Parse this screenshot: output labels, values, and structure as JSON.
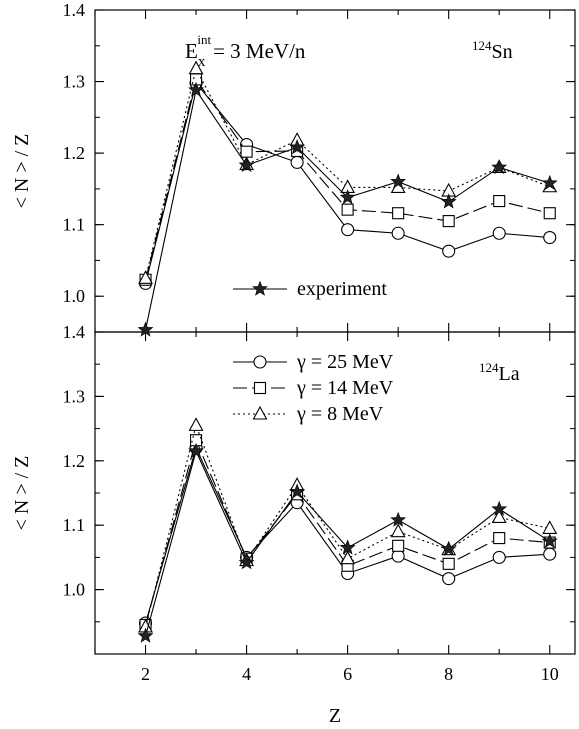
{
  "chart_data": [
    {
      "type": "line",
      "panel": "top",
      "annotation_energy": "3 MeV/n",
      "nucleus": {
        "mass": "124",
        "symbol": "Sn"
      },
      "ylabel": "< N > / Z",
      "xlim": [
        1,
        10.5
      ],
      "ylim": [
        0.95,
        1.4
      ],
      "yticks": [
        "1.0",
        "1.1",
        "1.2",
        "1.3",
        "1.4"
      ],
      "x": [
        2,
        3,
        4,
        5,
        6,
        7,
        8,
        9,
        10
      ],
      "series": [
        {
          "name": "γ = 25 MeV",
          "marker": "circle",
          "dash": "solid",
          "values": [
            1.018,
            1.298,
            1.212,
            1.187,
            1.093,
            1.088,
            1.063,
            1.088,
            1.082
          ]
        },
        {
          "name": "γ = 14 MeV",
          "marker": "square",
          "dash": "dashed",
          "values": [
            1.023,
            1.303,
            1.202,
            1.203,
            1.121,
            1.116,
            1.105,
            1.133,
            1.116
          ]
        },
        {
          "name": "γ = 8 MeV",
          "marker": "triangle",
          "dash": "dotted",
          "values": [
            1.025,
            1.318,
            1.184,
            1.218,
            1.152,
            1.152,
            1.147,
            1.18,
            1.153
          ]
        },
        {
          "name": "experiment",
          "marker": "star",
          "dash": "solid",
          "values": [
            0.953,
            1.288,
            1.183,
            1.208,
            1.138,
            1.16,
            1.132,
            1.18,
            1.158
          ]
        }
      ],
      "legend": [
        "experiment"
      ]
    },
    {
      "type": "line",
      "panel": "bottom",
      "nucleus": {
        "mass": "124",
        "symbol": "La"
      },
      "ylabel": "< N > / Z",
      "xlabel": "Z",
      "xlim": [
        1,
        10.5
      ],
      "ylim": [
        0.9,
        1.4
      ],
      "yticks": [
        "1.0",
        "1.1",
        "1.2",
        "1.3",
        "1.4"
      ],
      "xticks": [
        "2",
        "4",
        "6",
        "8",
        "10"
      ],
      "x": [
        2,
        3,
        4,
        5,
        6,
        7,
        8,
        9,
        10
      ],
      "series": [
        {
          "name": "γ = 25 MeV",
          "marker": "circle",
          "dash": "solid",
          "values": [
            0.948,
            1.22,
            1.05,
            1.135,
            1.025,
            1.052,
            1.017,
            1.05,
            1.055
          ]
        },
        {
          "name": "γ = 14 MeV",
          "marker": "square",
          "dash": "dashed",
          "values": [
            0.945,
            1.232,
            1.048,
            1.148,
            1.037,
            1.068,
            1.04,
            1.08,
            1.073
          ]
        },
        {
          "name": "γ = 8 MeV",
          "marker": "triangle",
          "dash": "dotted",
          "values": [
            0.942,
            1.255,
            1.045,
            1.162,
            1.048,
            1.09,
            1.062,
            1.112,
            1.095
          ]
        },
        {
          "name": "experiment",
          "marker": "star",
          "dash": "solid",
          "values": [
            0.928,
            1.215,
            1.042,
            1.152,
            1.065,
            1.108,
            1.063,
            1.125,
            1.075
          ]
        }
      ],
      "legend": [
        "γ = 25 MeV",
        "γ = 14 MeV",
        "γ = 8 MeV"
      ]
    }
  ]
}
